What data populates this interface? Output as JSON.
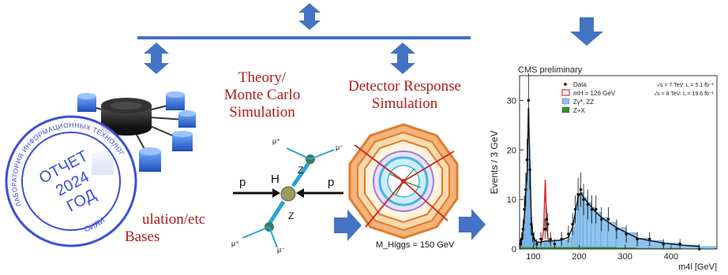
{
  "diagram": {
    "theory_label_lines": [
      "Theory/",
      "Monte Carlo",
      "Simulation"
    ],
    "detector_label_lines": [
      "Detector Response",
      "Simulation"
    ],
    "partial_label_lines": [
      "ulation/etc",
      "Bases"
    ],
    "feynman": {
      "left_particle": "p",
      "right_particle": "p",
      "higgs": "H",
      "boson_top": "Z",
      "boson_bottom": "Z",
      "mu_plus": "μ⁺",
      "mu_minus": "μ⁻"
    },
    "detector_caption": "M_Higgs = 150 GeV",
    "stamp": {
      "top_ring_text": "ЛАБОРАТОРИЯ ИНФОРМАЦИОННЫХ ТЕХНОЛОГИЙ ИМ. М. Г. МЕЩЕРЯКОВА",
      "bottom_ring_text": "ОИЯИ",
      "line1": "ОТЧЕТ",
      "line2": "2024",
      "line3": "ГОД"
    },
    "colors": {
      "arrow_blue": "#4472c4",
      "label_red": "#b01c1c",
      "stamp_blue": "#3d4fd6"
    }
  },
  "chart_data": {
    "type": "histogram",
    "title": "CMS preliminary",
    "xlabel": "m4l [GeV]",
    "ylabel": "Events / 3 GeV",
    "xlim": [
      70,
      500
    ],
    "ylim": [
      0,
      35
    ],
    "x_ticks": [
      100,
      200,
      300,
      400
    ],
    "y_ticks": [
      0,
      10,
      20,
      30
    ],
    "legend": [
      {
        "name": "Data",
        "color": "#000000"
      },
      {
        "name": "mH = 126 GeV",
        "color": "#e03030"
      },
      {
        "name": "Zγ*, ZZ",
        "color": "#8fc3ee"
      },
      {
        "name": "Z+X",
        "color": "#2f8f2f"
      }
    ],
    "annotations": [
      "√s = 7 TeV: L = 5.1 fb⁻¹",
      "√s = 8 TeV: L = 19.6 fb⁻¹"
    ],
    "bin_width": 3,
    "bins": [
      {
        "x": 70,
        "zz": 1.0,
        "zx": 0.3,
        "data": 1
      },
      {
        "x": 73,
        "zz": 1.5,
        "zx": 0.3,
        "data": 2
      },
      {
        "x": 76,
        "zz": 3.0,
        "zx": 0.4,
        "data": 4
      },
      {
        "x": 79,
        "zz": 6.0,
        "zx": 0.4,
        "data": 8
      },
      {
        "x": 82,
        "zz": 11.0,
        "zx": 0.4,
        "data": 12
      },
      {
        "x": 85,
        "zz": 15.0,
        "zx": 0.4,
        "data": 18
      },
      {
        "x": 88,
        "zz": 28.0,
        "zx": 0.4,
        "data": 30
      },
      {
        "x": 91,
        "zz": 17.0,
        "zx": 0.4,
        "data": 16
      },
      {
        "x": 94,
        "zz": 6.0,
        "zx": 0.4,
        "data": 5
      },
      {
        "x": 97,
        "zz": 2.5,
        "zx": 0.4,
        "data": 3
      },
      {
        "x": 100,
        "zz": 1.5,
        "zx": 0.4,
        "data": 2
      },
      {
        "x": 106,
        "zz": 1.0,
        "zx": 0.4,
        "data": 1
      },
      {
        "x": 115,
        "zz": 1.0,
        "zx": 0.4,
        "data": 2
      },
      {
        "x": 124,
        "zz": 1.2,
        "zx": 0.4,
        "data": 4
      },
      {
        "x": 127,
        "zz": 1.2,
        "zx": 0.4,
        "data": 6
      },
      {
        "x": 130,
        "zz": 1.2,
        "zx": 0.4,
        "data": 5
      },
      {
        "x": 136,
        "zz": 1.2,
        "zx": 0.4,
        "data": 2
      },
      {
        "x": 145,
        "zz": 1.3,
        "zx": 0.4,
        "data": 1
      },
      {
        "x": 160,
        "zz": 1.4,
        "zx": 0.4,
        "data": 2
      },
      {
        "x": 175,
        "zz": 2.0,
        "zx": 0.4,
        "data": 3
      },
      {
        "x": 184,
        "zz": 4.0,
        "zx": 0.4,
        "data": 5
      },
      {
        "x": 190,
        "zz": 7.0,
        "zx": 0.4,
        "data": 8
      },
      {
        "x": 196,
        "zz": 10.0,
        "zx": 0.4,
        "data": 11
      },
      {
        "x": 202,
        "zz": 11.0,
        "zx": 0.4,
        "data": 12
      },
      {
        "x": 208,
        "zz": 10.0,
        "zx": 0.4,
        "data": 10
      },
      {
        "x": 217,
        "zz": 9.0,
        "zx": 0.4,
        "data": 9
      },
      {
        "x": 226,
        "zz": 8.0,
        "zx": 0.4,
        "data": 8
      },
      {
        "x": 235,
        "zz": 7.0,
        "zx": 0.4,
        "data": 8
      },
      {
        "x": 247,
        "zz": 6.0,
        "zx": 0.4,
        "data": 6
      },
      {
        "x": 262,
        "zz": 5.0,
        "zx": 0.4,
        "data": 6
      },
      {
        "x": 280,
        "zz": 4.0,
        "zx": 0.3,
        "data": 4
      },
      {
        "x": 301,
        "zz": 3.0,
        "zx": 0.3,
        "data": 3
      },
      {
        "x": 325,
        "zz": 2.0,
        "zx": 0.2,
        "data": 2
      },
      {
        "x": 352,
        "zz": 1.5,
        "zx": 0.2,
        "data": 2
      },
      {
        "x": 382,
        "zz": 1.0,
        "zx": 0.2,
        "data": 1
      },
      {
        "x": 418,
        "zz": 0.7,
        "zx": 0.1,
        "data": 1
      },
      {
        "x": 460,
        "zz": 0.4,
        "zx": 0.1,
        "data": 0
      }
    ],
    "higgs_signal": [
      {
        "x": 116,
        "y": 1.0
      },
      {
        "x": 120,
        "y": 2.0
      },
      {
        "x": 123,
        "y": 5.0
      },
      {
        "x": 126,
        "y": 14.0
      },
      {
        "x": 129,
        "y": 5.0
      },
      {
        "x": 132,
        "y": 2.0
      },
      {
        "x": 136,
        "y": 1.2
      }
    ]
  }
}
